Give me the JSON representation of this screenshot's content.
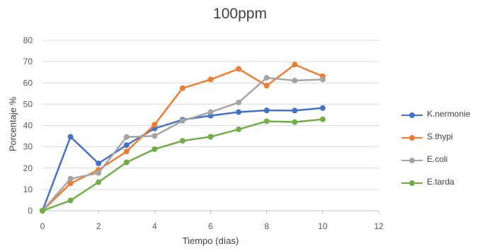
{
  "chart_data": {
    "type": "line",
    "title": "100ppm",
    "xlabel": "Tiempo (días)",
    "ylabel": "Porcentaje %",
    "xlim": [
      0,
      12
    ],
    "ylim": [
      0,
      80
    ],
    "xticks": [
      0,
      2,
      4,
      6,
      8,
      10,
      12
    ],
    "yticks": [
      0,
      10,
      20,
      30,
      40,
      50,
      60,
      70,
      80
    ],
    "grid": true,
    "legend_position": "right",
    "series": [
      {
        "name": "K.nermonie",
        "color": "#4472C4",
        "x": [
          0,
          1,
          2,
          3,
          4,
          5,
          6,
          7,
          8,
          9,
          10
        ],
        "y": [
          0,
          34.7,
          22.2,
          30.8,
          38.6,
          42.7,
          44.6,
          46.3,
          47.1,
          47.0,
          48.2
        ]
      },
      {
        "name": "S.thypi",
        "color": "#ED7D31",
        "x": [
          0,
          1,
          2,
          3,
          4,
          5,
          6,
          7,
          8,
          9,
          10
        ],
        "y": [
          0,
          12.8,
          19.2,
          27.8,
          40.4,
          57.5,
          61.6,
          66.6,
          58.7,
          68.6,
          63.1
        ]
      },
      {
        "name": "E.coli",
        "color": "#A5A5A5",
        "x": [
          0,
          1,
          2,
          3,
          4,
          5,
          6,
          7,
          8,
          9,
          10
        ],
        "y": [
          0,
          15.0,
          17.7,
          34.6,
          35.1,
          42.2,
          46.3,
          50.8,
          62.4,
          61.1,
          61.6
        ]
      },
      {
        "name": "E.tarda",
        "color": "#70AD47",
        "x": [
          0,
          1,
          2,
          3,
          4,
          5,
          6,
          7,
          8,
          9,
          10
        ],
        "y": [
          0,
          4.8,
          13.4,
          22.7,
          28.9,
          32.8,
          34.7,
          38.2,
          42.0,
          41.6,
          42.9
        ]
      }
    ]
  }
}
